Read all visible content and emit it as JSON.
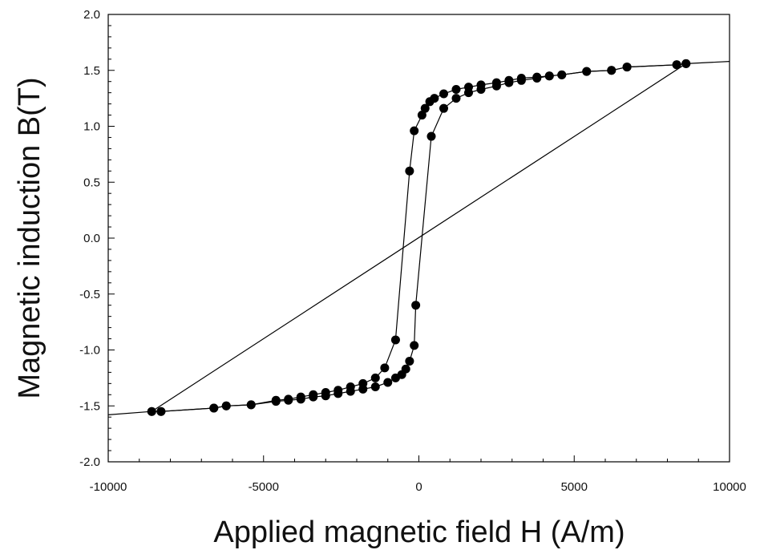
{
  "chart_data": {
    "type": "scatter",
    "title": "",
    "xlabel": "Applied magnetic field H (A/m)",
    "ylabel": "Magnetic induction  B(T)",
    "xlim": [
      -10000,
      10000
    ],
    "ylim": [
      -2.0,
      2.0
    ],
    "xticks": [
      "-10000",
      "-5000",
      "0",
      "5000",
      "10000"
    ],
    "yticks": [
      "-2.0",
      "-1.5",
      "-1.0",
      "-0.5",
      "0.0",
      "0.5",
      "1.0",
      "1.5",
      "2.0"
    ],
    "grid": false,
    "legend": "none",
    "marker_color": "#000000",
    "line_color": "#000000",
    "series": [
      {
        "values": [
          [
            -8600,
            -1.55
          ],
          [
            -8300,
            -1.55
          ],
          [
            -6600,
            -1.52
          ],
          [
            -6200,
            -1.5
          ],
          [
            -5400,
            -1.49
          ],
          [
            -4600,
            -1.45
          ],
          [
            -4200,
            -1.44
          ],
          [
            -3800,
            -1.42
          ],
          [
            -3400,
            -1.4
          ],
          [
            -3000,
            -1.38
          ],
          [
            -2600,
            -1.36
          ],
          [
            -2200,
            -1.33
          ],
          [
            -1800,
            -1.3
          ],
          [
            -1400,
            -1.25
          ],
          [
            -1100,
            -1.16
          ],
          [
            -750,
            -0.91
          ],
          [
            -300,
            0.6
          ],
          [
            -150,
            0.96
          ],
          [
            100,
            1.1
          ],
          [
            200,
            1.16
          ],
          [
            350,
            1.22
          ],
          [
            500,
            1.25
          ],
          [
            800,
            1.29
          ],
          [
            1200,
            1.33
          ],
          [
            1600,
            1.35
          ],
          [
            2000,
            1.37
          ],
          [
            2500,
            1.39
          ],
          [
            2900,
            1.41
          ],
          [
            3300,
            1.43
          ],
          [
            3800,
            1.44
          ],
          [
            4200,
            1.45
          ],
          [
            4600,
            1.46
          ],
          [
            5400,
            1.49
          ],
          [
            6200,
            1.5
          ],
          [
            6700,
            1.53
          ],
          [
            8300,
            1.55
          ],
          [
            8600,
            1.56
          ]
        ]
      },
      {
        "values": [
          [
            8600,
            1.56
          ],
          [
            8300,
            1.55
          ],
          [
            6700,
            1.53
          ],
          [
            6200,
            1.5
          ],
          [
            5400,
            1.49
          ],
          [
            4600,
            1.46
          ],
          [
            4200,
            1.45
          ],
          [
            3800,
            1.43
          ],
          [
            3300,
            1.41
          ],
          [
            2900,
            1.39
          ],
          [
            2500,
            1.36
          ],
          [
            2000,
            1.33
          ],
          [
            1600,
            1.3
          ],
          [
            1200,
            1.25
          ],
          [
            800,
            1.16
          ],
          [
            400,
            0.91
          ],
          [
            -100,
            -0.6
          ],
          [
            -150,
            -0.96
          ],
          [
            -300,
            -1.1
          ],
          [
            -420,
            -1.17
          ],
          [
            -550,
            -1.22
          ],
          [
            -750,
            -1.25
          ],
          [
            -1000,
            -1.29
          ],
          [
            -1400,
            -1.33
          ],
          [
            -1800,
            -1.35
          ],
          [
            -2200,
            -1.37
          ],
          [
            -2600,
            -1.39
          ],
          [
            -3000,
            -1.41
          ],
          [
            -3400,
            -1.42
          ],
          [
            -3800,
            -1.44
          ],
          [
            -4200,
            -1.45
          ],
          [
            -4600,
            -1.46
          ],
          [
            -5400,
            -1.49
          ],
          [
            -6200,
            -1.5
          ],
          [
            -6600,
            -1.52
          ],
          [
            -8300,
            -1.55
          ],
          [
            -8600,
            -1.55
          ]
        ]
      },
      {
        "values": [
          [
            -10000,
            -1.58
          ],
          [
            -8600,
            -1.55
          ],
          [
            8600,
            1.56
          ],
          [
            10000,
            1.58
          ]
        ]
      }
    ]
  }
}
